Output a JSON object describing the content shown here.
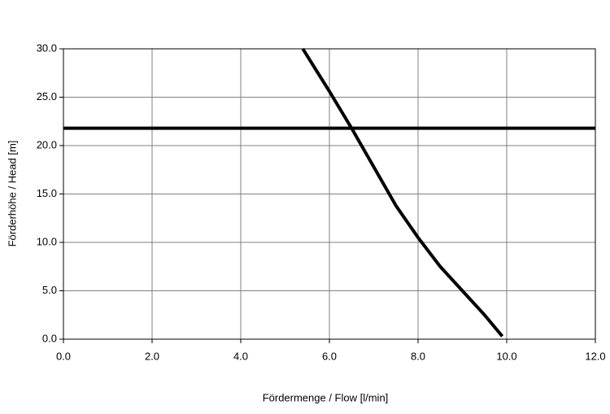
{
  "chart_data": {
    "type": "line",
    "x_label": "Fördermenge / Flow [l/min]",
    "y_label": "Förderhöhe / Head  [m]",
    "xlim": [
      0,
      12
    ],
    "ylim": [
      0,
      30
    ],
    "xticks": [
      {
        "value": 0,
        "label": "0.0"
      },
      {
        "value": 2,
        "label": "2.0"
      },
      {
        "value": 4,
        "label": "4.0"
      },
      {
        "value": 6,
        "label": "6.0"
      },
      {
        "value": 8,
        "label": "8.0"
      },
      {
        "value": 10,
        "label": "10.0"
      },
      {
        "value": 12,
        "label": "12.0"
      }
    ],
    "yticks": [
      {
        "value": 0,
        "label": "0.0"
      },
      {
        "value": 5,
        "label": "5.0"
      },
      {
        "value": 10,
        "label": "10.0"
      },
      {
        "value": 15,
        "label": "15.0"
      },
      {
        "value": 20,
        "label": "20.0"
      },
      {
        "value": 25,
        "label": "25.0"
      },
      {
        "value": 30,
        "label": "30.0"
      }
    ],
    "grid": true,
    "series": [
      {
        "color": "#000000",
        "x": [
          5.4,
          6.0,
          6.5,
          7.0,
          7.5,
          8.0,
          8.5,
          9.0,
          9.5,
          9.9
        ],
        "values": [
          30,
          25.6,
          21.8,
          17.8,
          13.8,
          10.5,
          7.5,
          5.0,
          2.5,
          0.3
        ]
      },
      {
        "color": "#000000",
        "x": [
          0,
          12
        ],
        "values": [
          21.8,
          21.8
        ]
      }
    ]
  }
}
